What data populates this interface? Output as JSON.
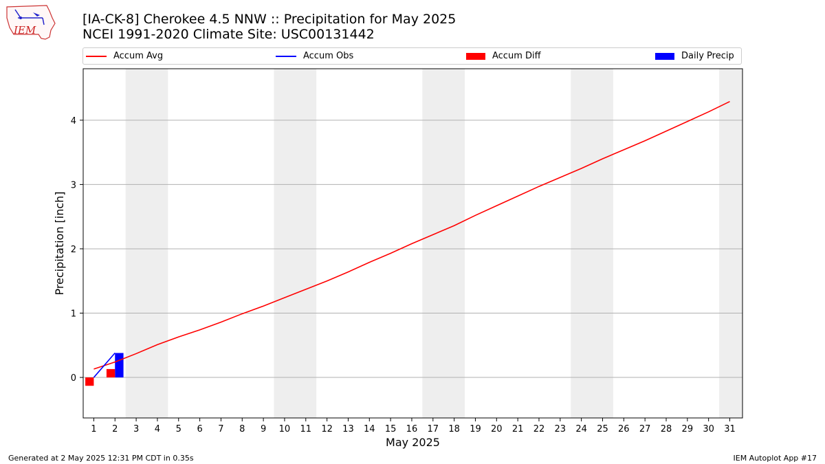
{
  "header": {
    "title_line1": "[IA-CK-8] Cherokee 4.5 NNW :: Precipitation for May 2025",
    "title_line2": "NCEI 1991-2020 Climate Site: USC00131442"
  },
  "logo": {
    "text": "IEM"
  },
  "legend": [
    {
      "label": "Accum Avg",
      "kind": "line",
      "color": "#ff0000"
    },
    {
      "label": "Accum Obs",
      "kind": "line",
      "color": "#0000ff"
    },
    {
      "label": "Accum Diff",
      "kind": "box",
      "color": "#ff0000"
    },
    {
      "label": "Daily Precip",
      "kind": "box",
      "color": "#0000ff"
    }
  ],
  "footer": {
    "generated": "Generated at 2 May 2025 12:31 PM CDT in 0.35s",
    "app": "IEM Autoplot App #17"
  },
  "chart_data": {
    "type": "line",
    "xlabel": "May 2025",
    "ylabel": "Precipitation [inch]",
    "xlim": [
      0.5,
      31.6
    ],
    "ylim": [
      -0.63,
      4.8
    ],
    "x_ticks": [
      1,
      2,
      3,
      4,
      5,
      6,
      7,
      8,
      9,
      10,
      11,
      12,
      13,
      14,
      15,
      16,
      17,
      18,
      19,
      20,
      21,
      22,
      23,
      24,
      25,
      26,
      27,
      28,
      29,
      30,
      31
    ],
    "y_ticks": [
      0,
      1,
      2,
      3,
      4
    ],
    "grid": "y-major",
    "weekend_shading": [
      [
        2.5,
        4.5
      ],
      [
        9.5,
        11.5
      ],
      [
        16.5,
        18.5
      ],
      [
        23.5,
        25.5
      ],
      [
        30.5,
        31.6
      ]
    ],
    "accum_avg": {
      "days": [
        1,
        2,
        3,
        4,
        5,
        6,
        7,
        8,
        9,
        10,
        11,
        12,
        13,
        14,
        15,
        16,
        17,
        18,
        19,
        20,
        21,
        22,
        23,
        24,
        25,
        26,
        27,
        28,
        29,
        30,
        31
      ],
      "values": [
        0.13,
        0.24,
        0.37,
        0.51,
        0.63,
        0.74,
        0.86,
        0.99,
        1.11,
        1.24,
        1.37,
        1.5,
        1.64,
        1.79,
        1.93,
        2.08,
        2.22,
        2.36,
        2.52,
        2.67,
        2.82,
        2.97,
        3.11,
        3.25,
        3.4,
        3.54,
        3.68,
        3.83,
        3.98,
        4.13,
        4.29
      ]
    },
    "accum_obs": {
      "days": [
        1,
        2
      ],
      "values": [
        0.0,
        0.38
      ]
    },
    "accum_diff": {
      "days": [
        1,
        2
      ],
      "values": [
        -0.13,
        0.13
      ]
    },
    "daily_precip": {
      "days": [
        1,
        2
      ],
      "values": [
        0.0,
        0.38
      ]
    }
  }
}
